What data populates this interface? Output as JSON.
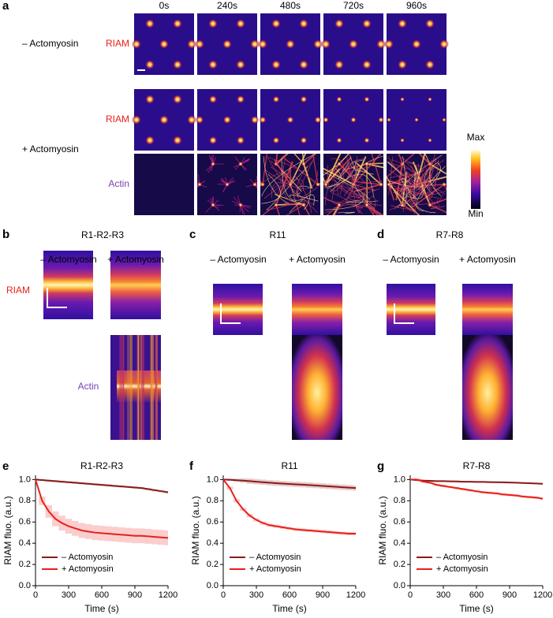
{
  "panel_a": {
    "label": "a",
    "times": [
      "0s",
      "240s",
      "480s",
      "720s",
      "960s"
    ],
    "conditions": [
      "– Actomyosin",
      "+ Actomyosin"
    ],
    "channels": [
      "RIAM",
      "RIAM",
      "Actin"
    ],
    "colorbar_max": "Max",
    "colorbar_min": "Min"
  },
  "kymographs": [
    {
      "label": "b",
      "title": "R1-R2-R3",
      "conditions": [
        "– Actomyosin",
        "+ Actomyosin"
      ],
      "channels": [
        "RIAM",
        "Actin"
      ]
    },
    {
      "label": "c",
      "title": "R11",
      "conditions": [
        "– Actomyosin",
        "+ Actomyosin"
      ]
    },
    {
      "label": "d",
      "title": "R7-R8",
      "conditions": [
        "– Actomyosin",
        "+ Actomyosin"
      ]
    }
  ],
  "chart_data": [
    {
      "type": "line",
      "label": "e",
      "title": "R1-R2-R3",
      "xlabel": "Time (s)",
      "ylabel": "RIAM fluo. (a.u.)",
      "x": [
        0,
        60,
        120,
        180,
        240,
        300,
        360,
        420,
        480,
        540,
        600,
        660,
        720,
        780,
        840,
        900,
        960,
        1020,
        1080,
        1140,
        1200
      ],
      "xlim": [
        0,
        1200
      ],
      "xticks": [
        0,
        300,
        600,
        900,
        1200
      ],
      "ylim": [
        0,
        1.04
      ],
      "yticks": [
        {
          "value": 0,
          "label": "0.0"
        },
        0.2,
        0.4,
        0.6,
        0.8,
        {
          "value": 1,
          "label": "1.0"
        }
      ],
      "legend": "lower left",
      "series": [
        {
          "name": "– Actomyosin",
          "color": "#8b1a1a",
          "values": [
            1.0,
            0.995,
            0.99,
            0.985,
            0.98,
            0.975,
            0.97,
            0.965,
            0.96,
            0.955,
            0.95,
            0.945,
            0.94,
            0.935,
            0.93,
            0.925,
            0.92,
            0.91,
            0.9,
            0.89,
            0.88
          ],
          "errors": [
            0.005,
            0.008,
            0.01,
            0.01,
            0.01,
            0.01,
            0.01,
            0.01,
            0.01,
            0.01,
            0.01,
            0.01,
            0.01,
            0.01,
            0.01,
            0.01,
            0.01,
            0.01,
            0.01,
            0.01,
            0.01
          ]
        },
        {
          "name": "+ Actomyosin",
          "color": "#e8201a",
          "values": [
            1.0,
            0.8,
            0.7,
            0.63,
            0.59,
            0.56,
            0.54,
            0.52,
            0.51,
            0.5,
            0.495,
            0.49,
            0.485,
            0.48,
            0.475,
            0.47,
            0.47,
            0.465,
            0.46,
            0.455,
            0.45
          ],
          "errors": [
            0.01,
            0.04,
            0.06,
            0.07,
            0.07,
            0.07,
            0.07,
            0.07,
            0.07,
            0.07,
            0.07,
            0.07,
            0.07,
            0.07,
            0.07,
            0.07,
            0.07,
            0.07,
            0.07,
            0.07,
            0.07
          ]
        }
      ]
    },
    {
      "type": "line",
      "label": "f",
      "title": "R11",
      "xlabel": "Time (s)",
      "ylabel": "RIAM fluo. (a.u.)",
      "x": [
        0,
        60,
        120,
        180,
        240,
        300,
        360,
        420,
        480,
        540,
        600,
        660,
        720,
        780,
        840,
        900,
        960,
        1020,
        1080,
        1140,
        1200
      ],
      "xlim": [
        0,
        1200
      ],
      "xticks": [
        0,
        300,
        600,
        900,
        1200
      ],
      "ylim": [
        0,
        1.04
      ],
      "yticks": [
        {
          "value": 0,
          "label": "0.0"
        },
        0.2,
        0.4,
        0.6,
        0.8,
        {
          "value": 1,
          "label": "1.0"
        }
      ],
      "legend": "lower left",
      "series": [
        {
          "name": "– Actomyosin",
          "color": "#8b1a1a",
          "values": [
            1.0,
            0.998,
            0.994,
            0.99,
            0.985,
            0.98,
            0.975,
            0.97,
            0.966,
            0.962,
            0.958,
            0.955,
            0.952,
            0.948,
            0.944,
            0.94,
            0.936,
            0.932,
            0.928,
            0.924,
            0.92
          ],
          "errors": [
            0.005,
            0.01,
            0.015,
            0.02,
            0.025,
            0.025,
            0.025,
            0.025,
            0.025,
            0.025,
            0.025,
            0.025,
            0.025,
            0.025,
            0.025,
            0.025,
            0.025,
            0.025,
            0.025,
            0.025,
            0.025
          ]
        },
        {
          "name": "+ Actomyosin",
          "color": "#e8201a",
          "values": [
            1.0,
            0.92,
            0.8,
            0.72,
            0.66,
            0.62,
            0.59,
            0.57,
            0.56,
            0.55,
            0.54,
            0.53,
            0.525,
            0.52,
            0.515,
            0.51,
            0.505,
            0.5,
            0.495,
            0.49,
            0.49
          ],
          "errors": [
            0.005,
            0.015,
            0.015,
            0.015,
            0.015,
            0.015,
            0.015,
            0.015,
            0.015,
            0.015,
            0.015,
            0.015,
            0.015,
            0.015,
            0.015,
            0.015,
            0.015,
            0.015,
            0.015,
            0.015,
            0.015
          ]
        }
      ]
    },
    {
      "type": "line",
      "label": "g",
      "title": "R7-R8",
      "xlabel": "Time (s)",
      "ylabel": "RIAM fluo. (a.u.)",
      "x": [
        0,
        60,
        120,
        180,
        240,
        300,
        360,
        420,
        480,
        540,
        600,
        660,
        720,
        780,
        840,
        900,
        960,
        1020,
        1080,
        1140,
        1200
      ],
      "xlim": [
        0,
        1200
      ],
      "xticks": [
        0,
        300,
        600,
        900,
        1200
      ],
      "ylim": [
        0,
        1.04
      ],
      "yticks": [
        {
          "value": 0,
          "label": "0.0"
        },
        0.2,
        0.4,
        0.6,
        0.8,
        {
          "value": 1,
          "label": "1.0"
        }
      ],
      "legend": "lower left",
      "series": [
        {
          "name": "– Actomyosin",
          "color": "#8b1a1a",
          "values": [
            1.0,
            0.995,
            0.99,
            0.988,
            0.985,
            0.985,
            0.983,
            0.982,
            0.98,
            0.98,
            0.978,
            0.978,
            0.976,
            0.975,
            0.974,
            0.972,
            0.97,
            0.968,
            0.966,
            0.963,
            0.96
          ],
          "errors": [
            0.005,
            0.006,
            0.008,
            0.008,
            0.008,
            0.008,
            0.008,
            0.008,
            0.008,
            0.008,
            0.008,
            0.008,
            0.008,
            0.008,
            0.008,
            0.008,
            0.008,
            0.008,
            0.008,
            0.008,
            0.008
          ]
        },
        {
          "name": "+ Actomyosin",
          "color": "#e8201a",
          "values": [
            1.0,
            1.0,
            0.98,
            0.97,
            0.95,
            0.94,
            0.93,
            0.92,
            0.91,
            0.9,
            0.89,
            0.88,
            0.875,
            0.87,
            0.86,
            0.855,
            0.85,
            0.84,
            0.835,
            0.83,
            0.82
          ],
          "errors": [
            0.005,
            0.01,
            0.01,
            0.01,
            0.012,
            0.012,
            0.012,
            0.012,
            0.012,
            0.012,
            0.012,
            0.012,
            0.012,
            0.012,
            0.012,
            0.012,
            0.012,
            0.012,
            0.012,
            0.012,
            0.012
          ]
        }
      ]
    }
  ]
}
